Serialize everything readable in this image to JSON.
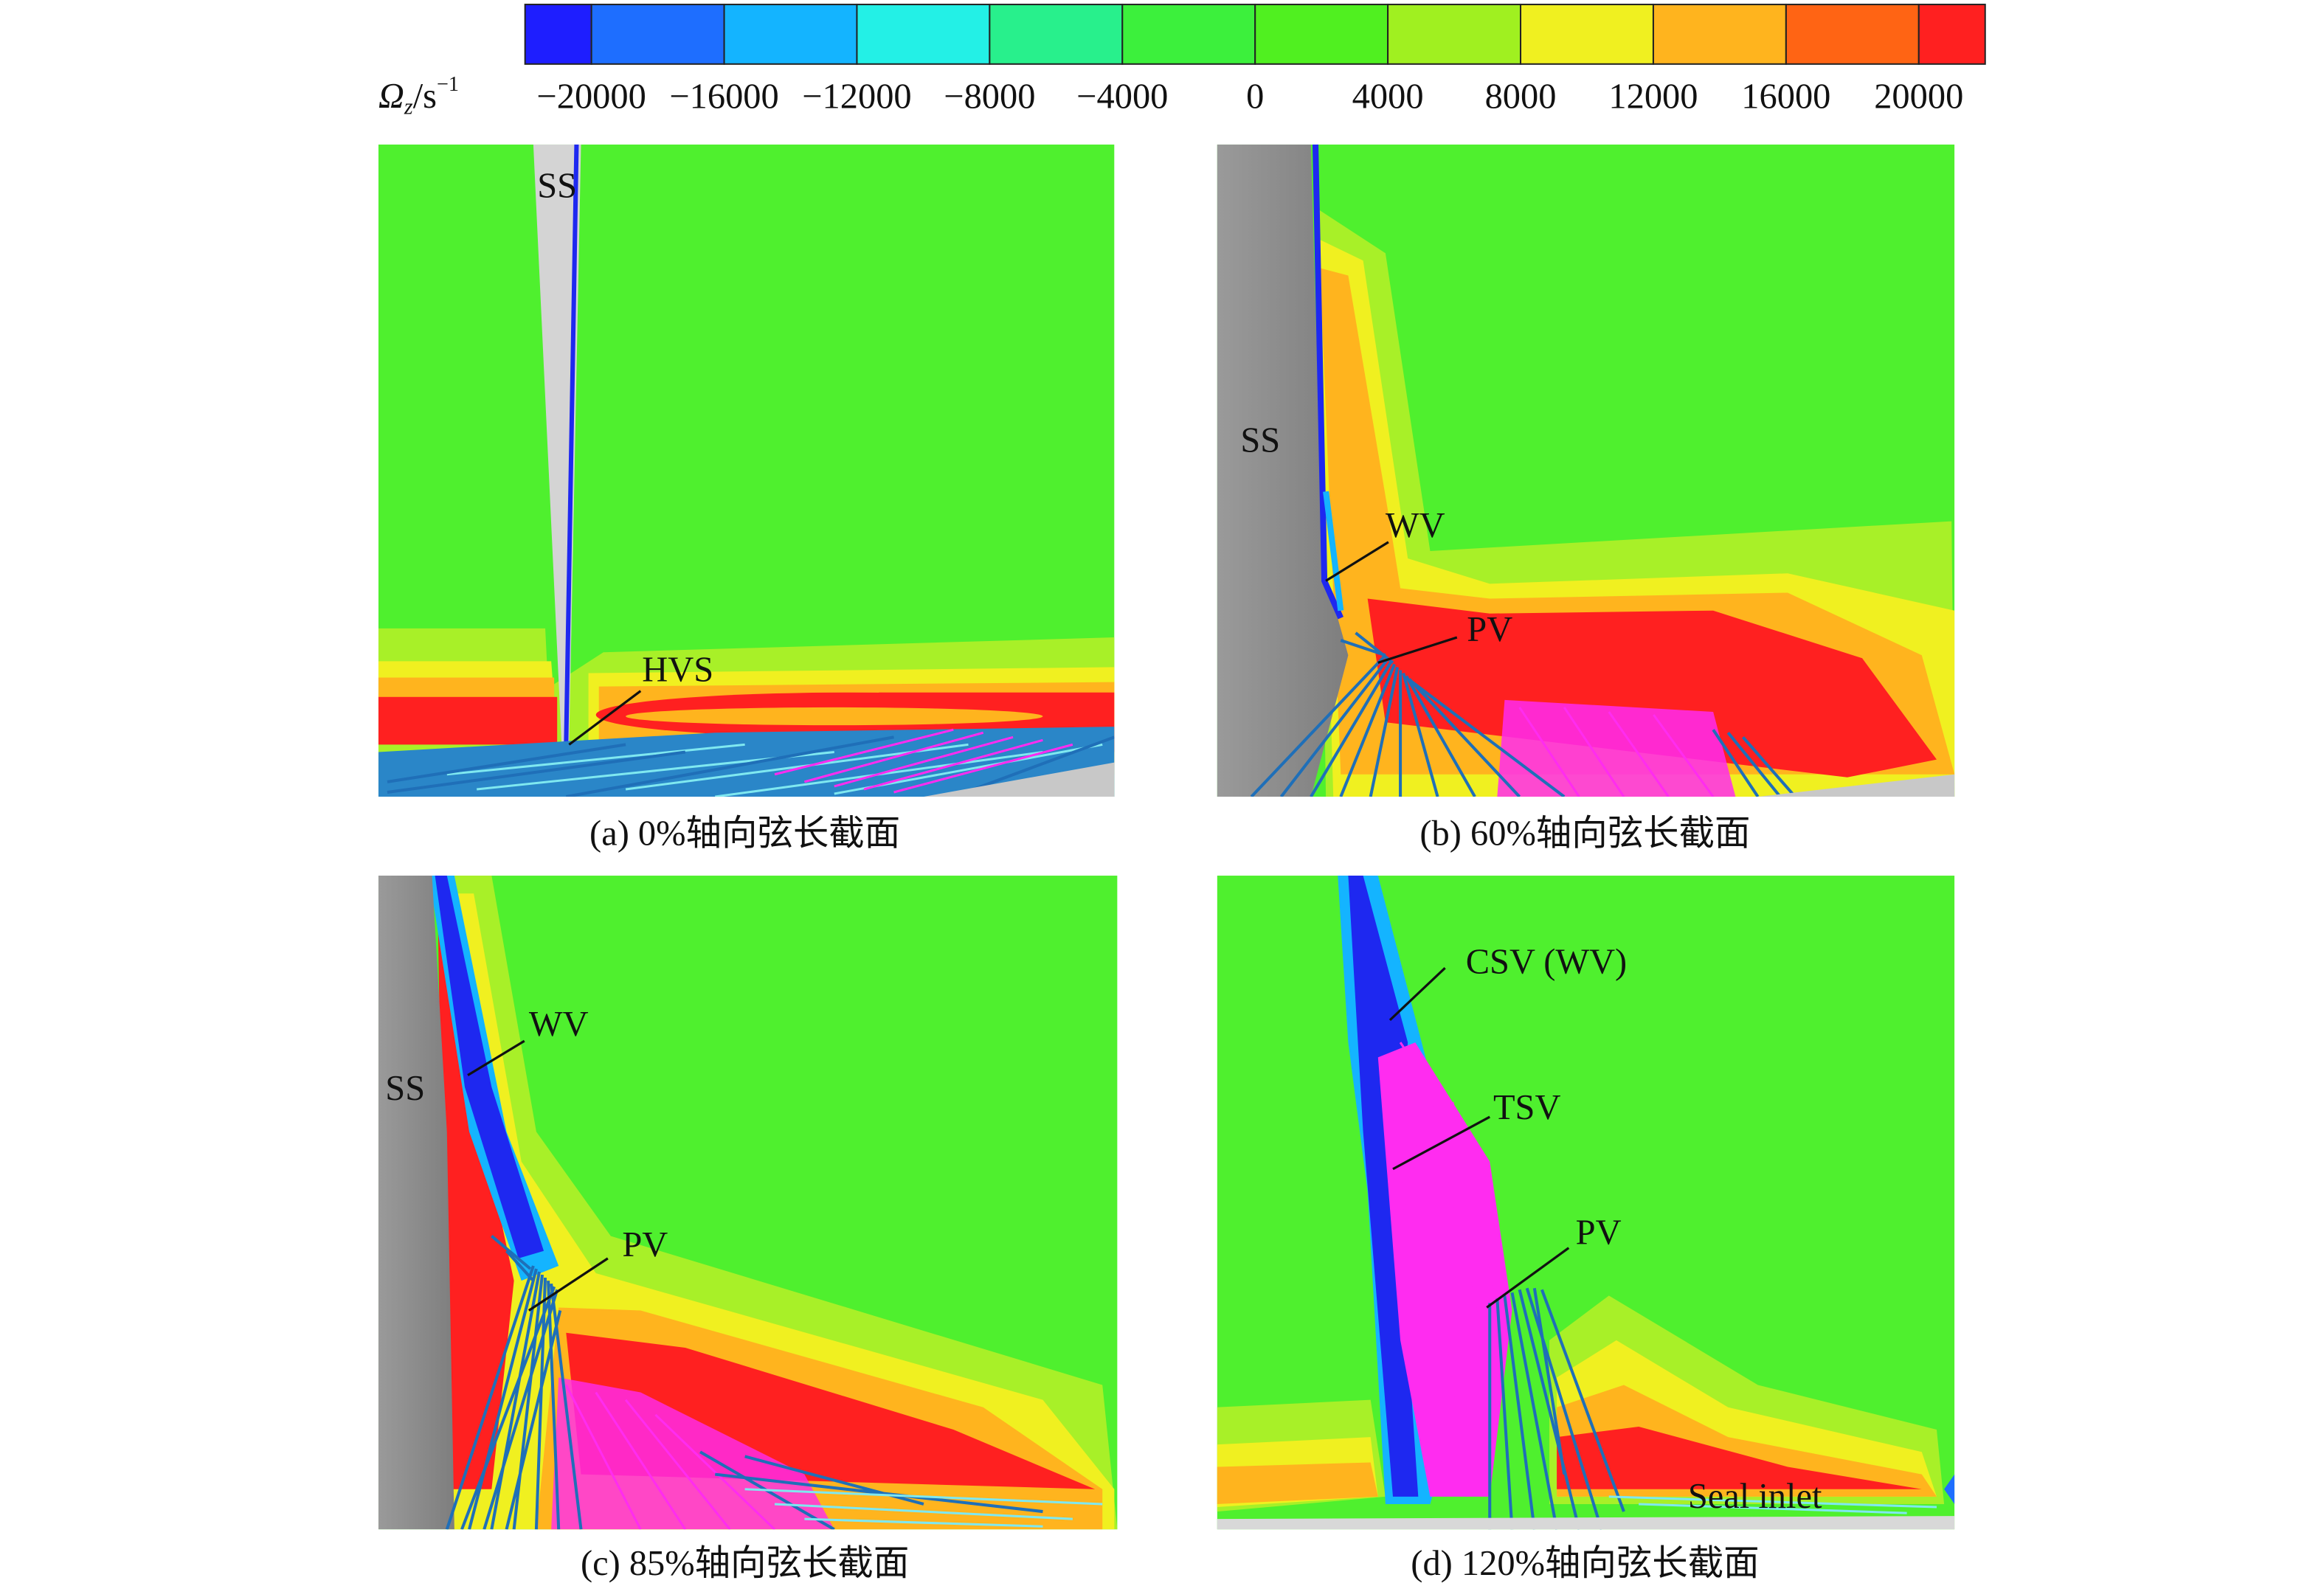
{
  "colorbar": {
    "symbol": "Ω",
    "subscript": "z",
    "unit": "/s",
    "superscript": "−1",
    "ticks": [
      {
        "value": -20000,
        "label": "−20000"
      },
      {
        "value": -16000,
        "label": "−16000"
      },
      {
        "value": -12000,
        "label": "−12000"
      },
      {
        "value": -8000,
        "label": "−8000"
      },
      {
        "value": -4000,
        "label": "−4000"
      },
      0,
      4000,
      8000,
      12000,
      16000,
      20000
    ],
    "colors": [
      "#1e1eff",
      "#1e6eff",
      "#14b4ff",
      "#23f0e6",
      "#28f08c",
      "#3cf03c",
      "#50f020",
      "#a0f020",
      "#f0f020",
      "#ffb41e",
      "#ff6414",
      "#ff2020"
    ]
  },
  "panels": [
    {
      "caption": "(a) 0%轴向弦长截面",
      "labels": [
        "SS",
        "HVS"
      ]
    },
    {
      "caption": "(b) 60%轴向弦长截面",
      "labels": [
        "SS",
        "WV",
        "PV"
      ]
    },
    {
      "caption": "(c) 85%轴向弦长截面",
      "labels": [
        "SS",
        "WV",
        "PV"
      ]
    },
    {
      "caption": "(d) 120%轴向弦长截面",
      "labels": [
        "CSV (WV)",
        "TSV",
        "PV",
        "Seal inlet"
      ]
    }
  ]
}
